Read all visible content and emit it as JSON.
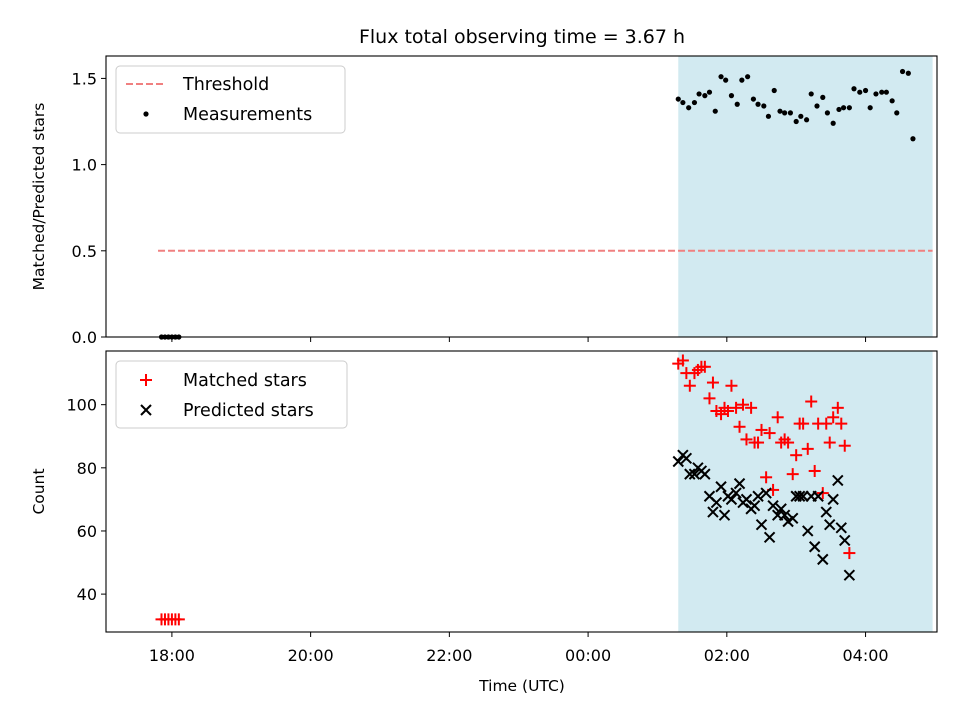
{
  "figure": {
    "title": "Flux total observing time = 3.67 h",
    "xlabel": "Time (UTC)",
    "xtick_labels": [
      "18:00",
      "20:00",
      "22:00",
      "00:00",
      "02:00",
      "04:00"
    ]
  },
  "chart_data": [
    {
      "type": "scatter",
      "panel": "top",
      "ylabel": "Matched/Predicted stars",
      "ylim": [
        0.0,
        1.63
      ],
      "yticks": [
        0.0,
        0.5,
        1.0,
        1.5
      ],
      "ytick_labels": [
        "0.0",
        "0.5",
        "1.0",
        "1.5"
      ],
      "xlim_hours": [
        17.05,
        5.03
      ],
      "legend": {
        "placement": "top-left",
        "entries": [
          "Threshold",
          "Measurements"
        ]
      },
      "shaded_interval": {
        "start": "01:18",
        "end": "04:58",
        "color": "#add8e6"
      },
      "threshold": {
        "name": "Threshold",
        "y": 0.5,
        "x_start": "17:48",
        "x_end": "04:58",
        "color": "#f08080",
        "style": "dashed"
      },
      "series": [
        {
          "name": "Measurements",
          "color": "#000000",
          "marker": "dot",
          "points": [
            [
              "17:51",
              0.0
            ],
            [
              "17:54",
              0.0
            ],
            [
              "17:57",
              0.0
            ],
            [
              "18:00",
              0.0
            ],
            [
              "18:03",
              0.0
            ],
            [
              "18:06",
              0.0
            ],
            [
              "01:18",
              1.38
            ],
            [
              "01:22",
              1.36
            ],
            [
              "01:27",
              1.33
            ],
            [
              "01:32",
              1.36
            ],
            [
              "01:36",
              1.41
            ],
            [
              "01:41",
              1.4
            ],
            [
              "01:45",
              1.42
            ],
            [
              "01:50",
              1.31
            ],
            [
              "01:55",
              1.51
            ],
            [
              "01:59",
              1.49
            ],
            [
              "02:04",
              1.4
            ],
            [
              "02:09",
              1.35
            ],
            [
              "02:13",
              1.49
            ],
            [
              "02:18",
              1.51
            ],
            [
              "02:23",
              1.38
            ],
            [
              "02:27",
              1.35
            ],
            [
              "02:32",
              1.34
            ],
            [
              "02:36",
              1.28
            ],
            [
              "02:41",
              1.43
            ],
            [
              "02:46",
              1.31
            ],
            [
              "02:50",
              1.3
            ],
            [
              "02:55",
              1.3
            ],
            [
              "03:00",
              1.25
            ],
            [
              "03:04",
              1.28
            ],
            [
              "03:09",
              1.26
            ],
            [
              "03:13",
              1.41
            ],
            [
              "03:18",
              1.34
            ],
            [
              "03:23",
              1.39
            ],
            [
              "03:27",
              1.3
            ],
            [
              "03:32",
              1.24
            ],
            [
              "03:37",
              1.32
            ],
            [
              "03:41",
              1.33
            ],
            [
              "03:46",
              1.33
            ],
            [
              "03:50",
              1.44
            ],
            [
              "03:55",
              1.42
            ],
            [
              "04:00",
              1.43
            ],
            [
              "04:04",
              1.33
            ],
            [
              "04:09",
              1.41
            ],
            [
              "04:14",
              1.42
            ],
            [
              "04:18",
              1.42
            ],
            [
              "04:23",
              1.37
            ],
            [
              "04:27",
              1.3
            ],
            [
              "04:32",
              1.54
            ],
            [
              "04:37",
              1.53
            ],
            [
              "04:41",
              1.15
            ]
          ]
        }
      ]
    },
    {
      "type": "scatter",
      "panel": "bottom",
      "ylabel": "Count",
      "ylim": [
        28.0,
        117.0
      ],
      "yticks": [
        40,
        60,
        80,
        100
      ],
      "ytick_labels": [
        "40",
        "60",
        "80",
        "100"
      ],
      "xlim_hours": [
        17.05,
        5.03
      ],
      "legend": {
        "placement": "top-left",
        "entries": [
          "Matched stars",
          "Predicted stars"
        ]
      },
      "shaded_interval": {
        "start": "01:18",
        "end": "04:58",
        "color": "#add8e6"
      },
      "series": [
        {
          "name": "Matched stars",
          "color": "#ff0000",
          "marker": "plus",
          "points": [
            [
              "17:51",
              32
            ],
            [
              "17:54",
              32
            ],
            [
              "17:57",
              32
            ],
            [
              "18:00",
              32
            ],
            [
              "18:03",
              32
            ],
            [
              "18:06",
              32
            ],
            [
              "01:18",
              113
            ],
            [
              "01:22",
              114
            ],
            [
              "01:25",
              110
            ],
            [
              "01:28",
              106
            ],
            [
              "01:32",
              110
            ],
            [
              "01:35",
              111
            ],
            [
              "01:38",
              112
            ],
            [
              "01:41",
              112
            ],
            [
              "01:45",
              102
            ],
            [
              "01:48",
              107
            ],
            [
              "01:51",
              98
            ],
            [
              "01:55",
              97
            ],
            [
              "01:58",
              99
            ],
            [
              "02:01",
              98
            ],
            [
              "02:04",
              106
            ],
            [
              "02:08",
              99
            ],
            [
              "02:11",
              93
            ],
            [
              "02:14",
              100
            ],
            [
              "02:17",
              89
            ],
            [
              "02:21",
              99
            ],
            [
              "02:24",
              88
            ],
            [
              "02:27",
              88
            ],
            [
              "02:30",
              92
            ],
            [
              "02:34",
              77
            ],
            [
              "02:37",
              91
            ],
            [
              "02:40",
              73
            ],
            [
              "02:44",
              96
            ],
            [
              "02:47",
              88
            ],
            [
              "02:50",
              89
            ],
            [
              "02:53",
              88
            ],
            [
              "02:57",
              78
            ],
            [
              "03:00",
              84
            ],
            [
              "03:03",
              94
            ],
            [
              "03:06",
              94
            ],
            [
              "03:10",
              86
            ],
            [
              "03:13",
              101
            ],
            [
              "03:16",
              79
            ],
            [
              "03:19",
              94
            ],
            [
              "03:23",
              72
            ],
            [
              "03:26",
              94
            ],
            [
              "03:29",
              88
            ],
            [
              "03:32",
              96
            ],
            [
              "03:36",
              99
            ],
            [
              "03:39",
              94
            ],
            [
              "03:42",
              87
            ],
            [
              "03:46",
              53
            ]
          ]
        },
        {
          "name": "Predicted stars",
          "color": "#000000",
          "marker": "x",
          "points": [
            [
              "01:18",
              82
            ],
            [
              "01:22",
              84
            ],
            [
              "01:25",
              83
            ],
            [
              "01:28",
              78
            ],
            [
              "01:32",
              78
            ],
            [
              "01:35",
              80
            ],
            [
              "01:38",
              79
            ],
            [
              "01:41",
              78
            ],
            [
              "01:45",
              71
            ],
            [
              "01:48",
              66
            ],
            [
              "01:51",
              69
            ],
            [
              "01:55",
              74
            ],
            [
              "01:58",
              65
            ],
            [
              "02:01",
              71
            ],
            [
              "02:04",
              70
            ],
            [
              "02:08",
              72
            ],
            [
              "02:11",
              75
            ],
            [
              "02:14",
              69
            ],
            [
              "02:17",
              70
            ],
            [
              "02:21",
              67
            ],
            [
              "02:24",
              68
            ],
            [
              "02:27",
              71
            ],
            [
              "02:30",
              62
            ],
            [
              "02:34",
              72
            ],
            [
              "02:37",
              58
            ],
            [
              "02:40",
              68
            ],
            [
              "02:44",
              65
            ],
            [
              "02:47",
              67
            ],
            [
              "02:50",
              65
            ],
            [
              "02:53",
              63
            ],
            [
              "02:57",
              64
            ],
            [
              "03:00",
              71
            ],
            [
              "03:03",
              71
            ],
            [
              "03:06",
              71
            ],
            [
              "03:10",
              60
            ],
            [
              "03:13",
              71
            ],
            [
              "03:16",
              55
            ],
            [
              "03:19",
              71
            ],
            [
              "03:23",
              51
            ],
            [
              "03:26",
              66
            ],
            [
              "03:29",
              62
            ],
            [
              "03:32",
              70
            ],
            [
              "03:36",
              76
            ],
            [
              "03:39",
              61
            ],
            [
              "03:42",
              57
            ],
            [
              "03:46",
              46
            ]
          ]
        }
      ]
    }
  ]
}
